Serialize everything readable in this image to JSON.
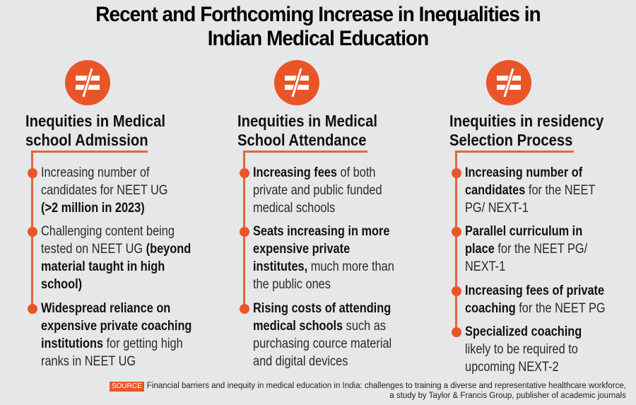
{
  "title": {
    "line1": "Recent and Forthcoming Increase in Inequalities in",
    "line2": "Indian Medical Education"
  },
  "colors": {
    "accent": "#ea5528",
    "background": "#e6e7e9",
    "line": "#e2673f"
  },
  "columns": [
    {
      "icon": "not-equal-icon",
      "heading_line1": "Inequities in Medical",
      "heading_line2": "school Admission",
      "items": [
        {
          "lines": [
            {
              "normal": "Increasing number of"
            },
            {
              "normal": "candidates for NEET UG"
            },
            {
              "bold": "(>2 million in 2023)"
            }
          ]
        },
        {
          "lines": [
            {
              "normal": "Challenging content being"
            },
            {
              "normal": "tested on NEET UG ",
              "bold": "(beyond"
            },
            {
              "bold": "material taught in high"
            },
            {
              "bold": "school)"
            }
          ]
        },
        {
          "lines": [
            {
              "bold": "Widespread reliance on"
            },
            {
              "bold": "expensive private coaching"
            },
            {
              "bold": "institutions",
              "normal": " for getting high"
            },
            {
              "normal": "ranks in NEET UG"
            }
          ]
        }
      ]
    },
    {
      "icon": "not-equal-icon",
      "heading_line1": "Inequities in Medical",
      "heading_line2": "School Attendance",
      "items": [
        {
          "lines": [
            {
              "bold": "Increasing fees",
              "normal": " of both"
            },
            {
              "normal": "private and public funded"
            },
            {
              "normal": "medical schools"
            }
          ]
        },
        {
          "lines": [
            {
              "bold": "Seats increasing in more"
            },
            {
              "bold": "expensive private"
            },
            {
              "bold": "institutes,",
              "normal": " much more than"
            },
            {
              "normal": "the public ones"
            }
          ]
        },
        {
          "lines": [
            {
              "bold": "Rising costs of attending"
            },
            {
              "bold": "medical schools",
              "normal": " such as"
            },
            {
              "normal": "purchasing cource material"
            },
            {
              "normal": "and digital devices"
            }
          ]
        }
      ]
    },
    {
      "icon": "not-equal-icon",
      "heading_line1": "Inequities in residency",
      "heading_line2": "Selection Process",
      "items": [
        {
          "lines": [
            {
              "bold": "Increasing number of"
            },
            {
              "bold": "candidates",
              "normal": " for the NEET"
            },
            {
              "normal": "PG/ NEXT-1"
            }
          ]
        },
        {
          "lines": [
            {
              "bold": "Parallel curriculum in"
            },
            {
              "bold": "place",
              "normal": " for the NEET PG/"
            },
            {
              "normal": "NEXT-1"
            }
          ]
        },
        {
          "lines": [
            {
              "bold": "Increasing fees of private"
            },
            {
              "bold": "coaching",
              "normal": " for the NEET PG"
            }
          ]
        },
        {
          "lines": [
            {
              "bold": "Specialized coaching"
            },
            {
              "normal": "likely to be required to"
            },
            {
              "normal": "upcoming NEXT-2"
            }
          ]
        }
      ]
    }
  ],
  "source": {
    "badge": "SOURCE",
    "line1": "Financial barriers and inequity in medical education in India: challenges to training a diverse and representative healthcare workforce,",
    "line2": "a study by Taylor & Francis Group, publisher of academic journals"
  }
}
